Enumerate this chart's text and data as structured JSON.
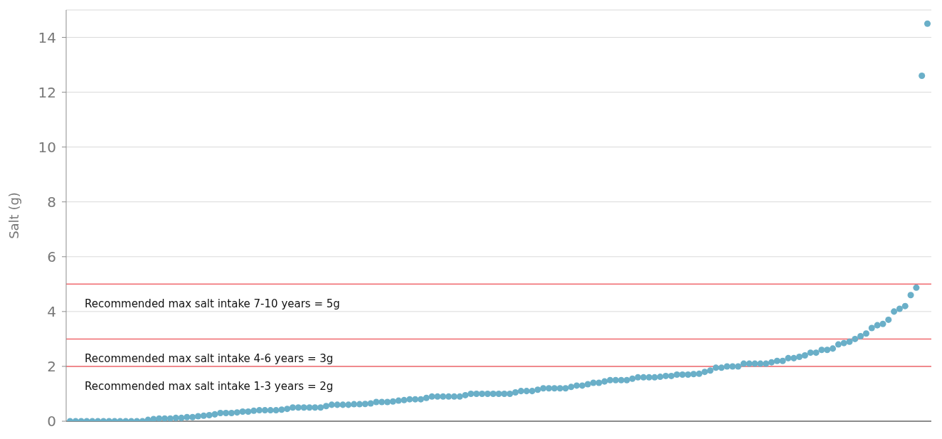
{
  "chart_data": {
    "type": "scatter",
    "ylabel": "Salt (g)",
    "categories": [
      null,
      null,
      null,
      null,
      null,
      null,
      null,
      null,
      null,
      null,
      null,
      null,
      null,
      null,
      null,
      null,
      null,
      null,
      null,
      null,
      null,
      null,
      null,
      null,
      null,
      null,
      null,
      null,
      null,
      null,
      null,
      null,
      null,
      null,
      null,
      null,
      null,
      null,
      null,
      null,
      null,
      null,
      null,
      null,
      null,
      null,
      null,
      null,
      null,
      null,
      null,
      null,
      null,
      null,
      null,
      null,
      null,
      null,
      null,
      null,
      null,
      null,
      null,
      null,
      null,
      null,
      null,
      null,
      null,
      null,
      null,
      null,
      null,
      null,
      null,
      null,
      null,
      null,
      null,
      null,
      null,
      null,
      null,
      null,
      null,
      null,
      null,
      null,
      null,
      null,
      null,
      null,
      null,
      null,
      null,
      null,
      null,
      null,
      null,
      null,
      null,
      null,
      null,
      null,
      null,
      null,
      null,
      null,
      null,
      null,
      null,
      null,
      null,
      null,
      null,
      null,
      null,
      null,
      null,
      null,
      null,
      null,
      null,
      null,
      null,
      null,
      null,
      null,
      null,
      null,
      null,
      null,
      null,
      null,
      null,
      null,
      null,
      null,
      null,
      null,
      null,
      null,
      null,
      null,
      null,
      null,
      null,
      null,
      null,
      null,
      null,
      null,
      null,
      null,
      null
    ],
    "series": [
      {
        "color": "#6aafc8",
        "values": [
          0,
          0,
          0,
          0,
          0,
          0,
          0,
          0,
          0,
          0,
          0,
          0,
          0,
          0,
          0.05,
          0.08,
          0.1,
          0.1,
          0.1,
          0.12,
          0.12,
          0.15,
          0.15,
          0.18,
          0.2,
          0.22,
          0.25,
          0.3,
          0.3,
          0.3,
          0.32,
          0.35,
          0.35,
          0.38,
          0.4,
          0.4,
          0.4,
          0.4,
          0.42,
          0.45,
          0.5,
          0.5,
          0.5,
          0.5,
          0.5,
          0.5,
          0.55,
          0.6,
          0.6,
          0.6,
          0.6,
          0.62,
          0.62,
          0.63,
          0.65,
          0.7,
          0.7,
          0.7,
          0.72,
          0.75,
          0.77,
          0.8,
          0.8,
          0.8,
          0.85,
          0.9,
          0.9,
          0.9,
          0.9,
          0.9,
          0.9,
          0.95,
          1.0,
          1.0,
          1.0,
          1.0,
          1.0,
          1.0,
          1.0,
          1.0,
          1.05,
          1.1,
          1.1,
          1.1,
          1.15,
          1.2,
          1.2,
          1.2,
          1.2,
          1.2,
          1.25,
          1.3,
          1.3,
          1.35,
          1.4,
          1.4,
          1.45,
          1.5,
          1.5,
          1.5,
          1.5,
          1.55,
          1.6,
          1.6,
          1.6,
          1.6,
          1.62,
          1.65,
          1.65,
          1.7,
          1.7,
          1.7,
          1.72,
          1.73,
          1.8,
          1.85,
          1.95,
          1.95,
          2.0,
          2.0,
          2.0,
          2.1,
          2.1,
          2.1,
          2.1,
          2.1,
          2.15,
          2.2,
          2.2,
          2.3,
          2.3,
          2.35,
          2.4,
          2.5,
          2.5,
          2.6,
          2.6,
          2.65,
          2.8,
          2.85,
          2.9,
          3.0,
          3.1,
          3.2,
          3.4,
          3.5,
          3.55,
          3.7,
          4.0,
          4.1,
          4.2,
          4.6,
          4.87,
          12.6,
          14.5
        ]
      }
    ],
    "ylim": [
      0,
      15
    ],
    "yticks": [
      0,
      2,
      4,
      6,
      8,
      10,
      12,
      14
    ],
    "grid": "y",
    "marker": "circle",
    "tick_labels": "y",
    "ref_lines": [
      {
        "axis": "y",
        "value": 5,
        "label": "Recommended max salt intake 7-10 years = 5g",
        "color": "#f0696e"
      },
      {
        "axis": "y",
        "value": 3,
        "label": "Recommended max salt intake 4-6 years = 3g",
        "color": "#f0696e"
      },
      {
        "axis": "y",
        "value": 2,
        "label": "Recommended max salt intake 1-3 years = 2g",
        "color": "#f0696e"
      }
    ]
  }
}
